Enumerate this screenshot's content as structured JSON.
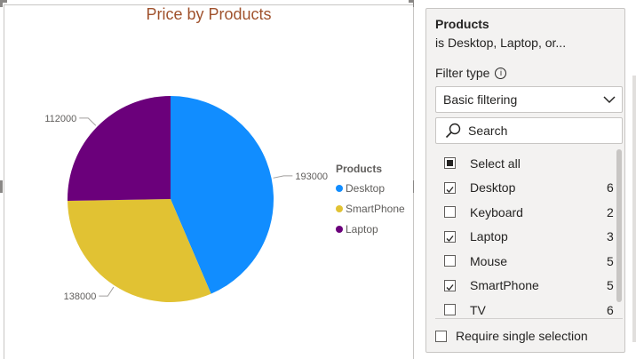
{
  "chart_data": {
    "type": "pie",
    "title": "Price by Products",
    "legend_title": "Products",
    "legend_position": "right",
    "categories": [
      "Desktop",
      "SmartPhone",
      "Laptop"
    ],
    "values": [
      193000,
      138000,
      112000
    ],
    "colors": [
      "#118DFF",
      "#E1C233",
      "#6B007B"
    ]
  },
  "filter": {
    "title": "Products",
    "subtitle": "is Desktop, Laptop, or...",
    "filter_type_label": "Filter type",
    "info_icon": "info-icon",
    "filter_type_value": "Basic filtering",
    "search_placeholder": "Search",
    "items": [
      {
        "label": "Select all",
        "state": "partial",
        "count": ""
      },
      {
        "label": "Desktop",
        "state": "checked",
        "count": "6"
      },
      {
        "label": "Keyboard",
        "state": "unchecked",
        "count": "2"
      },
      {
        "label": "Laptop",
        "state": "checked",
        "count": "3"
      },
      {
        "label": "Mouse",
        "state": "unchecked",
        "count": "5"
      },
      {
        "label": "SmartPhone",
        "state": "checked",
        "count": "5"
      },
      {
        "label": "TV",
        "state": "unchecked",
        "count": "6"
      }
    ],
    "require_single_label": "Require single selection",
    "require_single_checked": false
  }
}
